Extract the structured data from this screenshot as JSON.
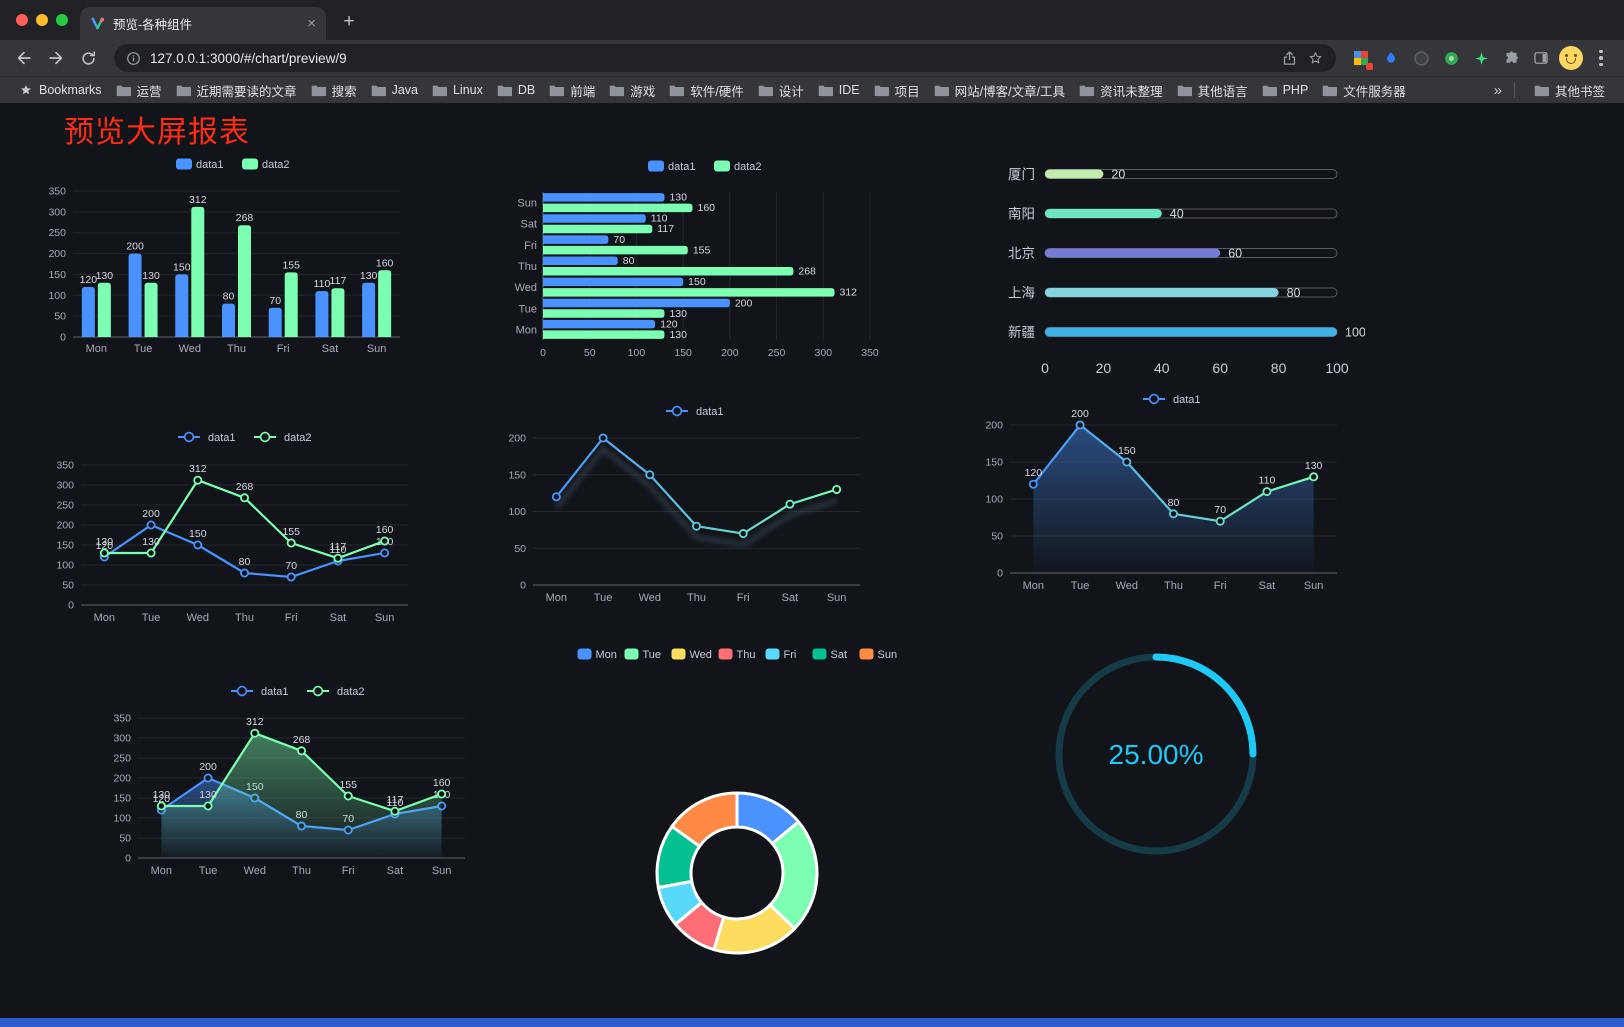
{
  "browser": {
    "tab_title": "预览-各种组件",
    "url": "127.0.0.1:3000/#/chart/preview/9",
    "bookmarks_label": "Bookmarks",
    "bookmarks": [
      "运营",
      "近期需要读的文章",
      "搜索",
      "Java",
      "Linux",
      "DB",
      "前端",
      "游戏",
      "软件/硬件",
      "设计",
      "IDE",
      "项目",
      "网站/博客/文章/工具",
      "资讯未整理",
      "其他语言",
      "PHP",
      "文件服务器"
    ],
    "overflow": "»",
    "other_bookmarks": "其他书签"
  },
  "page": {
    "title": "预览大屏报表",
    "title_color": "#fd2b18"
  },
  "colors": {
    "blue": "#4992ff",
    "green": "#7cffb2",
    "bottom_bar": "#2d5bd0",
    "page_bg": "#111419"
  },
  "chart_data": [
    {
      "id": "c1",
      "type": "bar",
      "categories": [
        "Mon",
        "Tue",
        "Wed",
        "Thu",
        "Fri",
        "Sat",
        "Sun"
      ],
      "series": [
        {
          "name": "data1",
          "color": "#4992ff",
          "values": [
            120,
            200,
            150,
            80,
            70,
            110,
            130
          ]
        },
        {
          "name": "data2",
          "color": "#7cffb2",
          "values": [
            130,
            130,
            312,
            268,
            155,
            117,
            160
          ]
        }
      ],
      "ymax": 350,
      "yticks": [
        0,
        50,
        100,
        150,
        200,
        250,
        300,
        350
      ]
    },
    {
      "id": "c2",
      "type": "hbar",
      "categories": [
        "Mon",
        "Tue",
        "Wed",
        "Thu",
        "Fri",
        "Sat",
        "Sun"
      ],
      "series": [
        {
          "name": "data1",
          "color": "#4992ff",
          "values": [
            120,
            200,
            150,
            80,
            70,
            110,
            130
          ]
        },
        {
          "name": "data2",
          "color": "#7cffb2",
          "values": [
            130,
            130,
            312,
            268,
            155,
            117,
            160
          ]
        }
      ],
      "xmax": 350,
      "xticks": [
        0,
        50,
        100,
        150,
        200,
        250,
        300,
        350
      ]
    },
    {
      "id": "c3",
      "type": "progress",
      "max": 100,
      "ticks": [
        0,
        20,
        40,
        60,
        80,
        100
      ],
      "rows": [
        {
          "label": "厦门",
          "value": 20,
          "color": "#c4ebad"
        },
        {
          "label": "南阳",
          "value": 40,
          "color": "#6be6c1"
        },
        {
          "label": "北京",
          "value": 60,
          "color": "#767bd6"
        },
        {
          "label": "上海",
          "value": 80,
          "color": "#85d3de"
        },
        {
          "label": "新疆",
          "value": 100,
          "color": "#3fb1e3"
        }
      ]
    },
    {
      "id": "c4",
      "type": "line",
      "categories": [
        "Mon",
        "Tue",
        "Wed",
        "Thu",
        "Fri",
        "Sat",
        "Sun"
      ],
      "series": [
        {
          "name": "data1",
          "color": "#4992ff",
          "values": [
            120,
            200,
            150,
            80,
            70,
            110,
            130
          ]
        },
        {
          "name": "data2",
          "color": "#7cffb2",
          "values": [
            130,
            130,
            312,
            268,
            155,
            117,
            160
          ]
        }
      ],
      "ymax": 350,
      "yticks": [
        0,
        50,
        100,
        150,
        200,
        250,
        300,
        350
      ]
    },
    {
      "id": "c5",
      "type": "line",
      "labels": false,
      "shadow": true,
      "gradient": [
        "#4992ff",
        "#7cffb2"
      ],
      "categories": [
        "Mon",
        "Tue",
        "Wed",
        "Thu",
        "Fri",
        "Sat",
        "Sun"
      ],
      "series": [
        {
          "name": "data1",
          "values": [
            120,
            200,
            150,
            80,
            70,
            110,
            130
          ]
        }
      ],
      "ymax": 200,
      "yticks": [
        0,
        50,
        100,
        150,
        200
      ]
    },
    {
      "id": "c6",
      "type": "line",
      "categories": [
        "Mon",
        "Tue",
        "Wed",
        "Thu",
        "Fri",
        "Sat",
        "Sun"
      ],
      "series": [
        {
          "name": "data1",
          "color": "#4992ff",
          "area": true,
          "gradient": [
            "#4992ff",
            "#7cffb2"
          ],
          "values": [
            120,
            200,
            150,
            80,
            70,
            110,
            130
          ]
        }
      ],
      "ymax": 200,
      "yticks": [
        0,
        50,
        100,
        150,
        200
      ]
    },
    {
      "id": "c7",
      "type": "line",
      "categories": [
        "Mon",
        "Tue",
        "Wed",
        "Thu",
        "Fri",
        "Sat",
        "Sun"
      ],
      "series": [
        {
          "name": "data1",
          "color": "#4992ff",
          "area": true,
          "values": [
            120,
            200,
            150,
            80,
            70,
            110,
            130
          ]
        },
        {
          "name": "data2",
          "color": "#7cffb2",
          "area": true,
          "values": [
            130,
            130,
            312,
            268,
            155,
            117,
            160
          ]
        }
      ],
      "ymax": 350,
      "yticks": [
        0,
        50,
        100,
        150,
        200,
        250,
        300,
        350
      ]
    },
    {
      "id": "c8",
      "type": "donut",
      "items": [
        {
          "label": "Mon",
          "value": 120,
          "color": "#4992ff"
        },
        {
          "label": "Tue",
          "value": 200,
          "color": "#7cffb2"
        },
        {
          "label": "Wed",
          "value": 150,
          "color": "#fddd60"
        },
        {
          "label": "Thu",
          "value": 80,
          "color": "#ff6e76"
        },
        {
          "label": "Fri",
          "value": 70,
          "color": "#58d9f9"
        },
        {
          "label": "Sat",
          "value": 110,
          "color": "#05c091"
        },
        {
          "label": "Sun",
          "value": 130,
          "color": "#ff8a45"
        }
      ]
    },
    {
      "id": "c9",
      "type": "gauge",
      "text": "25.00%",
      "percent": 25,
      "color": "#1ec9f5",
      "track": "#163a46"
    }
  ]
}
